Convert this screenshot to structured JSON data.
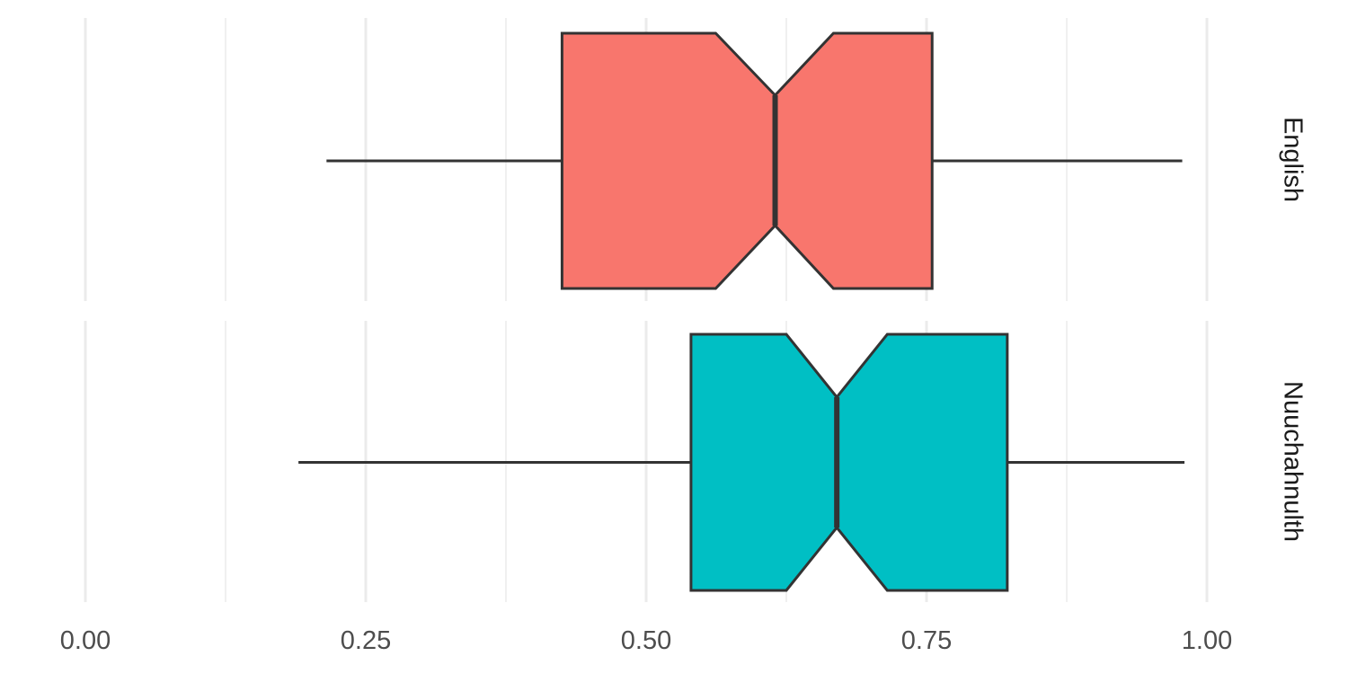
{
  "chart_data": {
    "type": "boxplot",
    "orientation": "horizontal",
    "notched": true,
    "facet": "rows",
    "xlim": [
      0,
      1
    ],
    "x_ticks": [
      0.0,
      0.25,
      0.5,
      0.75,
      1.0
    ],
    "x_tick_labels": [
      "0.00",
      "0.25",
      "0.50",
      "0.75",
      "1.00"
    ],
    "x_minor_ticks": [
      0.125,
      0.375,
      0.625,
      0.875
    ],
    "grid": "vertical-only",
    "legend": "none",
    "panels": [
      {
        "strip_label": "English",
        "color": "#F8766D",
        "stats": {
          "whisker_low": 0.215,
          "q1": 0.425,
          "notch_low": 0.562,
          "median": 0.615,
          "notch_high": 0.667,
          "q3": 0.755,
          "whisker_high": 0.978
        }
      },
      {
        "strip_label": "Nuuchahnulth",
        "color": "#00BFC4",
        "stats": {
          "whisker_low": 0.19,
          "q1": 0.54,
          "notch_low": 0.625,
          "median": 0.67,
          "notch_high": 0.715,
          "q3": 0.822,
          "whisker_high": 0.98
        }
      }
    ]
  }
}
